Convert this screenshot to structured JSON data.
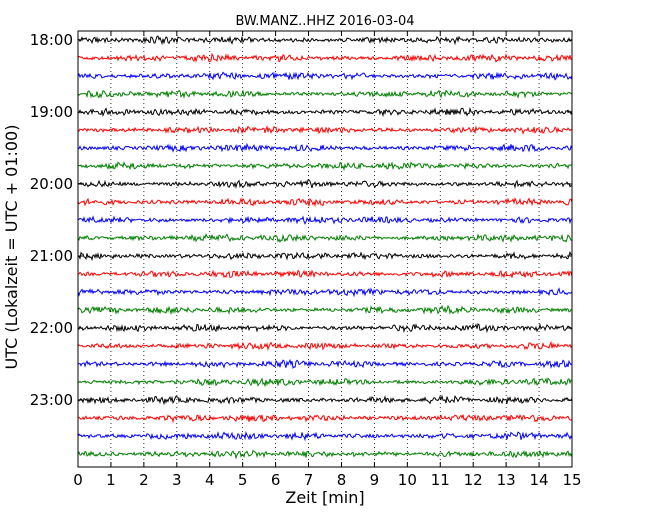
{
  "chart_data": {
    "type": "line",
    "title": "BW.MANZ..HHZ 2016-03-04",
    "xlabel": "Zeit  [min]",
    "ylabel": "UTC (Lokalzeit = UTC + 01:00)",
    "xlim": [
      0,
      15
    ],
    "x_ticks": [
      "0",
      "1",
      "2",
      "3",
      "4",
      "5",
      "6",
      "7",
      "8",
      "9",
      "10",
      "11",
      "12",
      "13",
      "14",
      "15"
    ],
    "y_ticks": [
      "18:00",
      "19:00",
      "20:00",
      "21:00",
      "22:00",
      "23:00"
    ],
    "grid": "vertical dotted lines at each minute",
    "trace_colors": [
      "#000000",
      "#ff0000",
      "#0000ff",
      "#008000"
    ],
    "traces": [
      {
        "start": "18:00"
      },
      {
        "start": "18:15"
      },
      {
        "start": "18:30"
      },
      {
        "start": "18:45"
      },
      {
        "start": "19:00"
      },
      {
        "start": "19:15"
      },
      {
        "start": "19:30"
      },
      {
        "start": "19:45"
      },
      {
        "start": "20:00"
      },
      {
        "start": "20:15"
      },
      {
        "start": "20:30"
      },
      {
        "start": "20:45"
      },
      {
        "start": "21:00"
      },
      {
        "start": "21:15"
      },
      {
        "start": "21:30"
      },
      {
        "start": "21:45"
      },
      {
        "start": "22:00"
      },
      {
        "start": "22:15"
      },
      {
        "start": "22:30"
      },
      {
        "start": "22:45"
      },
      {
        "start": "23:00"
      },
      {
        "start": "23:15"
      },
      {
        "start": "23:30"
      },
      {
        "start": "23:45"
      }
    ]
  }
}
